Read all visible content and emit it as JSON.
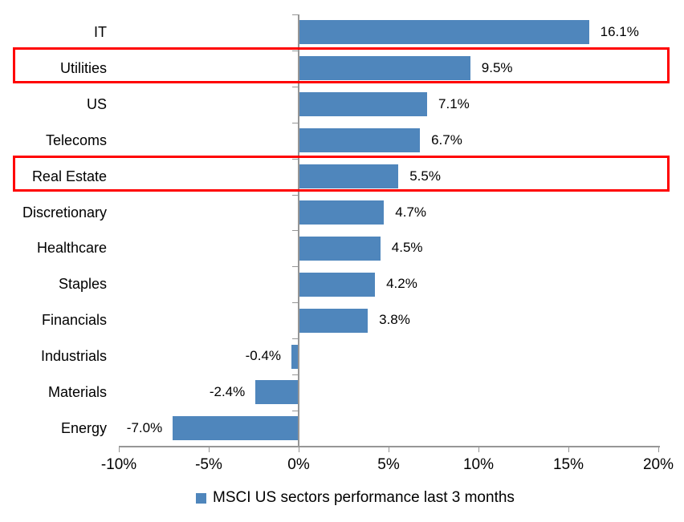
{
  "chart_data": {
    "type": "bar",
    "orientation": "horizontal",
    "title": "",
    "categories": [
      "IT",
      "Utilities",
      "US",
      "Telecoms",
      "Real Estate",
      "Discretionary",
      "Healthcare",
      "Staples",
      "Financials",
      "Industrials",
      "Materials",
      "Energy"
    ],
    "values": [
      16.1,
      9.5,
      7.1,
      6.7,
      5.5,
      4.7,
      4.5,
      4.2,
      3.8,
      -0.4,
      -2.4,
      -7.0
    ],
    "value_labels": [
      "16.1%",
      "9.5%",
      "7.1%",
      "6.7%",
      "5.5%",
      "4.7%",
      "4.5%",
      "4.2%",
      "3.8%",
      "-0.4%",
      "-2.4%",
      "-7.0%"
    ],
    "highlighted_categories": [
      "Utilities",
      "Real Estate"
    ],
    "x_axis": {
      "min": -10,
      "max": 20,
      "step": 5,
      "tick_labels": [
        "-10%",
        "-5%",
        "0%",
        "5%",
        "10%",
        "15%",
        "20%"
      ]
    },
    "legend": {
      "label": "MSCI US sectors performance last 3 months",
      "position": "bottom"
    },
    "grid": false,
    "colors": {
      "bar": "#4F86BC",
      "highlight_box": "#FF0000",
      "axis": "#969696",
      "text": "#000000"
    }
  }
}
